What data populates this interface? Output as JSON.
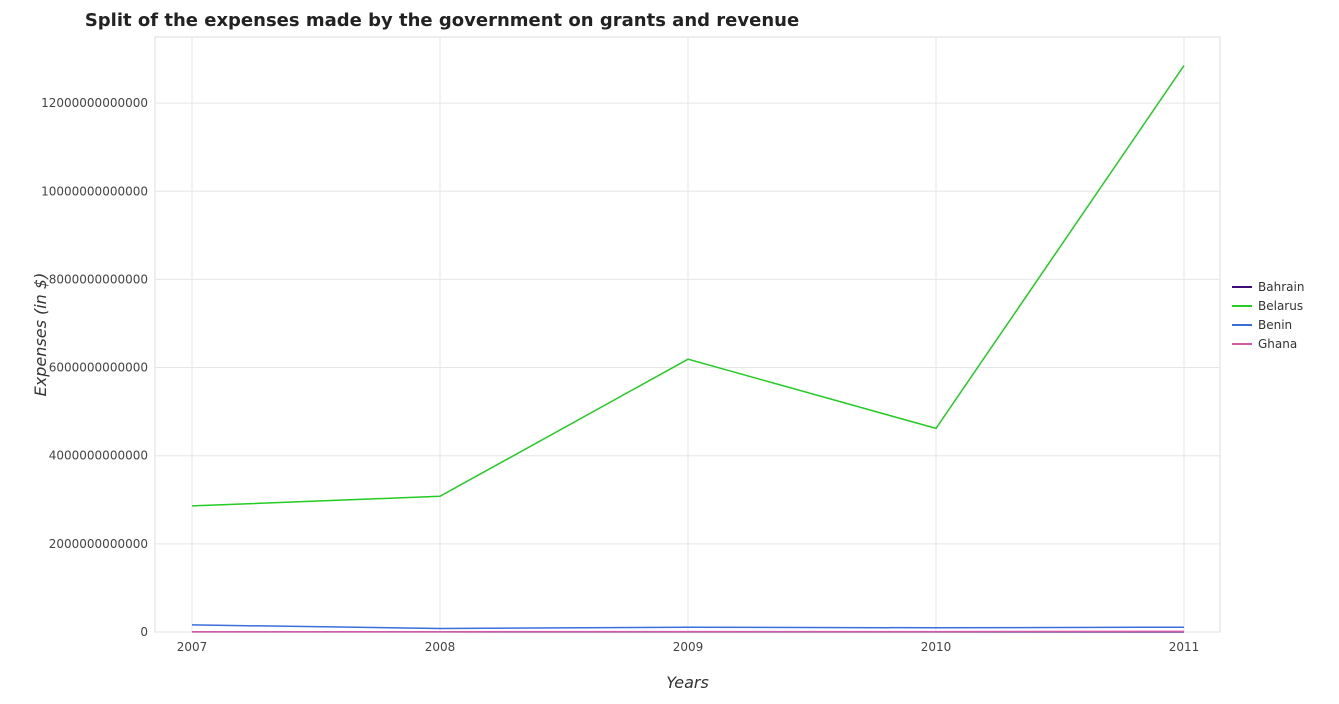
{
  "chart_data": {
    "type": "line",
    "title": "Split of the expenses made by the government on grants and revenue",
    "xlabel": "Years",
    "ylabel": "Expenses (in $)",
    "x": [
      "2007",
      "2008",
      "2009",
      "2010",
      "2011"
    ],
    "ylim": [
      0,
      13500000000000
    ],
    "yticks": [
      0,
      2000000000000,
      4000000000000,
      6000000000000,
      8000000000000,
      10000000000000,
      12000000000000
    ],
    "ytick_labels": [
      "0",
      "2000000000000",
      "4000000000000",
      "6000000000000",
      "8000000000000",
      "10000000000000",
      "12000000000000"
    ],
    "grid": true,
    "legend_position": "right",
    "series": [
      {
        "name": "Bahrain",
        "color": "#3d0c7a",
        "values": [
          2000000000,
          2000000000,
          2000000000,
          2000000000,
          2000000000
        ]
      },
      {
        "name": "Belarus",
        "color": "#22cc22",
        "values": [
          2860000000000,
          3080000000000,
          6190000000000,
          4620000000000,
          12850000000000
        ]
      },
      {
        "name": "Benin",
        "color": "#3a6fdb",
        "values": [
          160000000000,
          80000000000,
          110000000000,
          95000000000,
          110000000000
        ]
      },
      {
        "name": "Ghana",
        "color": "#d25aa8",
        "values": [
          5000000000,
          6000000000,
          8000000000,
          9000000000,
          14000000000
        ]
      }
    ]
  }
}
